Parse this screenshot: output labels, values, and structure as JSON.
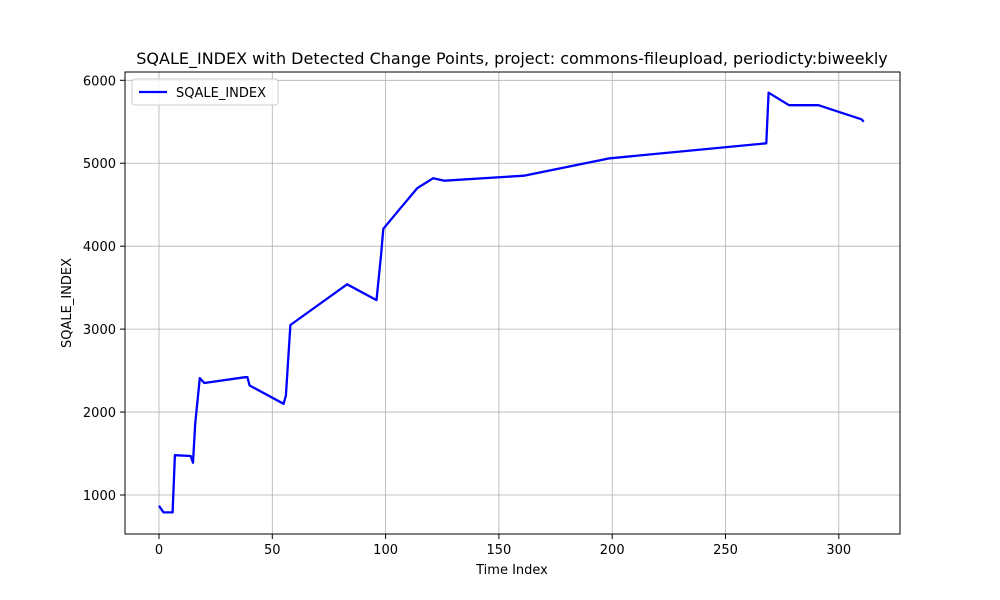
{
  "chart_data": {
    "type": "line",
    "title": "SQALE_INDEX with Detected Change Points, project: commons-fileupload, periodicty:biweekly",
    "xlabel": "Time Index",
    "ylabel": "SQALE_INDEX",
    "xlim": [
      -15,
      327
    ],
    "ylim": [
      530,
      6100
    ],
    "xticks": [
      0,
      50,
      100,
      150,
      200,
      250,
      300
    ],
    "yticks": [
      1000,
      2000,
      3000,
      4000,
      5000,
      6000
    ],
    "grid": true,
    "legend_position": "top-left",
    "series": [
      {
        "name": "SQALE_INDEX",
        "color": "#0000ff",
        "x": [
          0,
          2,
          6,
          7,
          14,
          15,
          16,
          18,
          20,
          38,
          39,
          40,
          55,
          56,
          58,
          83,
          96,
          98,
          99,
          106,
          114,
          121,
          126,
          161,
          199,
          268,
          269,
          278,
          291,
          310,
          311
        ],
        "y": [
          870,
          790,
          790,
          1480,
          1470,
          1390,
          1860,
          2410,
          2350,
          2420,
          2420,
          2320,
          2100,
          2200,
          3050,
          3540,
          3350,
          3900,
          4210,
          4440,
          4700,
          4820,
          4790,
          4850,
          5060,
          5240,
          5850,
          5700,
          5700,
          5530,
          5500
        ]
      }
    ]
  }
}
